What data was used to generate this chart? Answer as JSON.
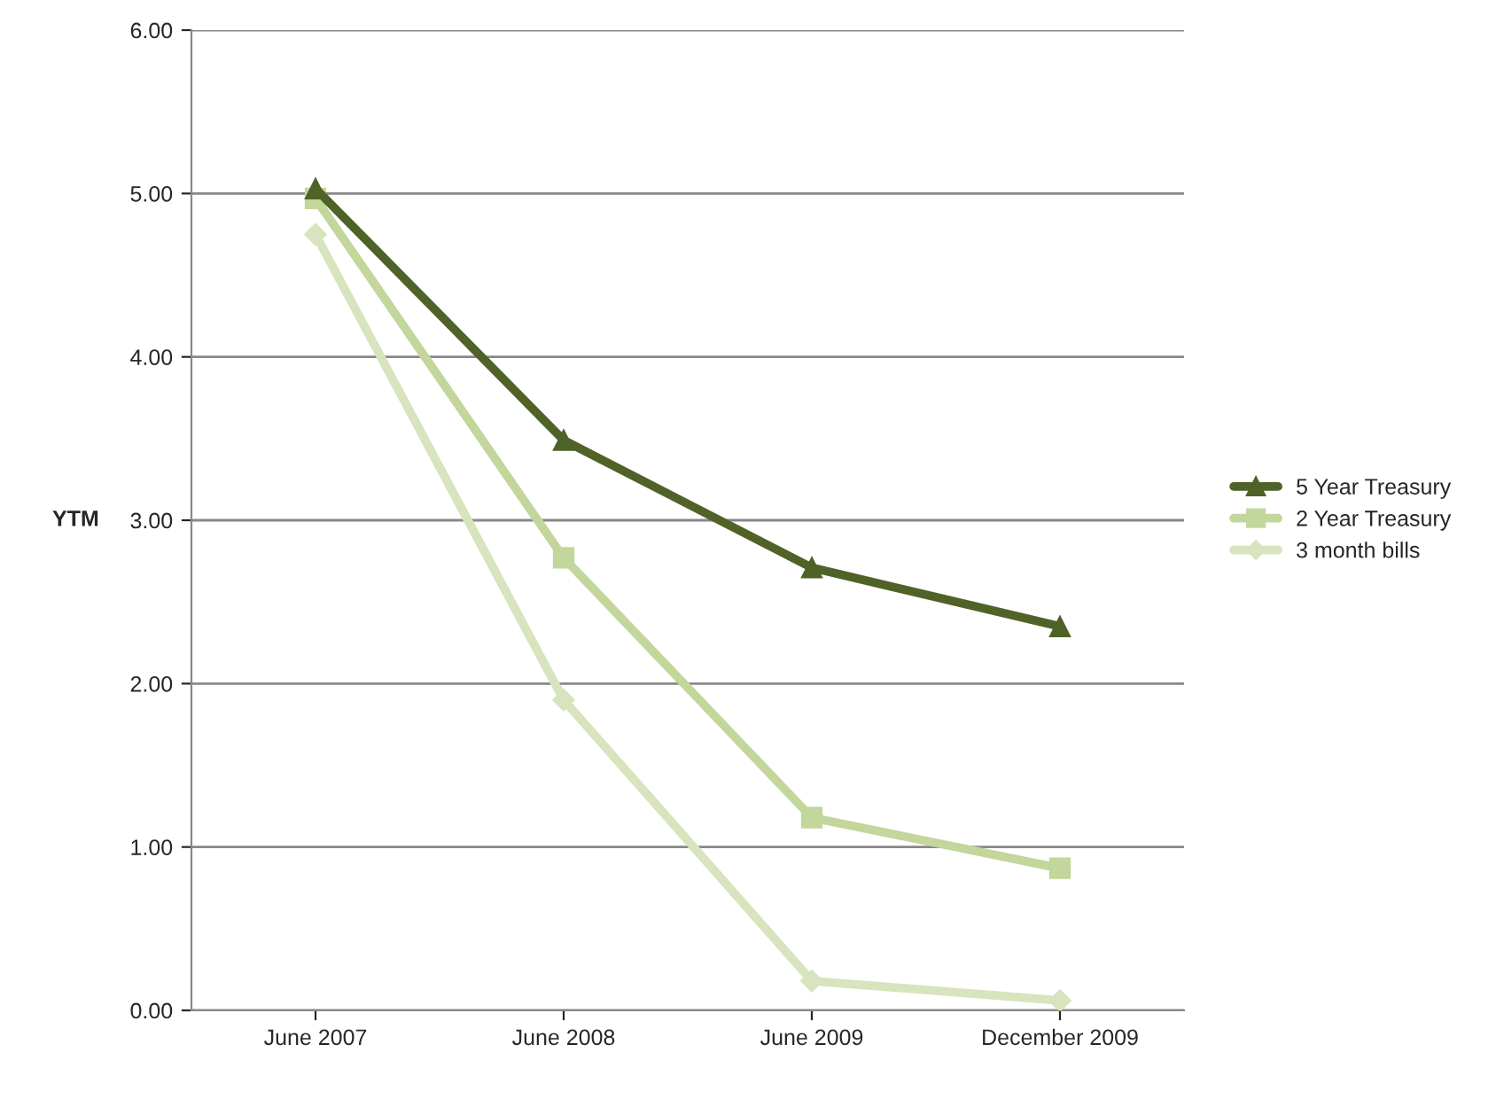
{
  "chart_data": {
    "type": "line",
    "ylabel": "YTM",
    "categories": [
      "June 2007",
      "June 2008",
      "June 2009",
      "December 2009"
    ],
    "series": [
      {
        "name": "5 Year Treasury",
        "color": "#4f6228",
        "marker": "triangle",
        "values": [
          5.03,
          3.49,
          2.71,
          2.35
        ]
      },
      {
        "name": "2 Year Treasury",
        "color": "#c3d69b",
        "marker": "square",
        "values": [
          4.97,
          2.77,
          1.18,
          0.87
        ]
      },
      {
        "name": "3 month bills",
        "color": "#d7e4bd",
        "marker": "diamond",
        "values": [
          4.75,
          1.9,
          0.18,
          0.06
        ]
      }
    ],
    "ylim": [
      0,
      6
    ],
    "yticks": [
      {
        "value": 0,
        "label": "0.00"
      },
      {
        "value": 1,
        "label": "1.00"
      },
      {
        "value": 2,
        "label": "2.00"
      },
      {
        "value": 3,
        "label": "3.00"
      },
      {
        "value": 4,
        "label": "4.00"
      },
      {
        "value": 5,
        "label": "5.00"
      },
      {
        "value": 6,
        "label": "6.00"
      }
    ],
    "grid": "y",
    "legend": "right",
    "line_style": "solid"
  }
}
